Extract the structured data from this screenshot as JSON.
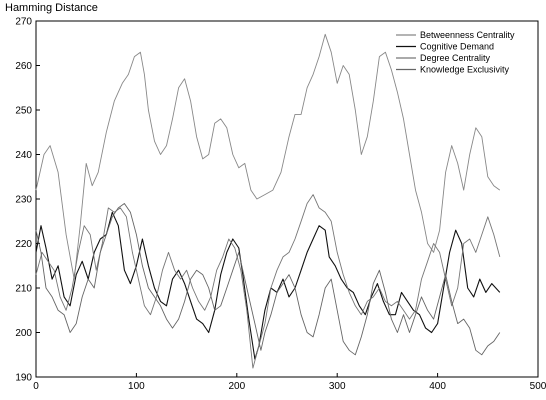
{
  "chart_data": {
    "type": "line",
    "title": "",
    "ylabel": "Hamming Distance",
    "xlabel": "",
    "xlim": [
      0,
      500
    ],
    "ylim": [
      190,
      270
    ],
    "xticks": [
      0,
      100,
      200,
      300,
      400,
      500
    ],
    "yticks": [
      190,
      200,
      210,
      220,
      230,
      240,
      250,
      260,
      270
    ],
    "grid": false,
    "legend_position": "top-right",
    "series": [
      {
        "name": "Betweenness Centrality",
        "color": "#888888",
        "points": [
          [
            0,
            232
          ],
          [
            8,
            240
          ],
          [
            14,
            242
          ],
          [
            22,
            236
          ],
          [
            30,
            222
          ],
          [
            38,
            212
          ],
          [
            44,
            224
          ],
          [
            50,
            238
          ],
          [
            56,
            233
          ],
          [
            62,
            236
          ],
          [
            70,
            245
          ],
          [
            78,
            252
          ],
          [
            86,
            256
          ],
          [
            92,
            258
          ],
          [
            98,
            262
          ],
          [
            104,
            263
          ],
          [
            108,
            258
          ],
          [
            112,
            250
          ],
          [
            118,
            243
          ],
          [
            124,
            240
          ],
          [
            130,
            242
          ],
          [
            136,
            248
          ],
          [
            142,
            255
          ],
          [
            148,
            257
          ],
          [
            154,
            252
          ],
          [
            160,
            244
          ],
          [
            166,
            239
          ],
          [
            172,
            240
          ],
          [
            178,
            247
          ],
          [
            184,
            248
          ],
          [
            190,
            246
          ],
          [
            196,
            240
          ],
          [
            202,
            237
          ],
          [
            208,
            238
          ],
          [
            214,
            232
          ],
          [
            220,
            230
          ],
          [
            228,
            231
          ],
          [
            236,
            232
          ],
          [
            244,
            236
          ],
          [
            252,
            244
          ],
          [
            258,
            249
          ],
          [
            264,
            249
          ],
          [
            270,
            255
          ],
          [
            276,
            258
          ],
          [
            282,
            262
          ],
          [
            288,
            267
          ],
          [
            294,
            263
          ],
          [
            300,
            256
          ],
          [
            306,
            260
          ],
          [
            312,
            258
          ],
          [
            318,
            250
          ],
          [
            324,
            240
          ],
          [
            330,
            244
          ],
          [
            336,
            252
          ],
          [
            342,
            262
          ],
          [
            348,
            263
          ],
          [
            354,
            259
          ],
          [
            360,
            254
          ],
          [
            366,
            248
          ],
          [
            372,
            240
          ],
          [
            378,
            232
          ],
          [
            384,
            227
          ],
          [
            390,
            220
          ],
          [
            396,
            218
          ],
          [
            402,
            223
          ],
          [
            408,
            236
          ],
          [
            414,
            242
          ],
          [
            420,
            238
          ],
          [
            426,
            232
          ],
          [
            432,
            240
          ],
          [
            438,
            246
          ],
          [
            444,
            244
          ],
          [
            450,
            235
          ],
          [
            456,
            233
          ],
          [
            462,
            232
          ]
        ]
      },
      {
        "name": "Cognitive Demand",
        "color": "#111111",
        "points": [
          [
            0,
            218
          ],
          [
            5,
            224
          ],
          [
            10,
            219
          ],
          [
            16,
            212
          ],
          [
            22,
            215
          ],
          [
            28,
            208
          ],
          [
            34,
            206
          ],
          [
            40,
            213
          ],
          [
            46,
            216
          ],
          [
            52,
            212
          ],
          [
            58,
            218
          ],
          [
            64,
            221
          ],
          [
            70,
            222
          ],
          [
            76,
            227
          ],
          [
            82,
            224
          ],
          [
            88,
            214
          ],
          [
            94,
            211
          ],
          [
            100,
            215
          ],
          [
            106,
            221
          ],
          [
            112,
            215
          ],
          [
            118,
            210
          ],
          [
            124,
            207
          ],
          [
            130,
            206
          ],
          [
            136,
            212
          ],
          [
            142,
            214
          ],
          [
            148,
            211
          ],
          [
            154,
            207
          ],
          [
            160,
            203
          ],
          [
            166,
            202
          ],
          [
            172,
            200
          ],
          [
            178,
            205
          ],
          [
            184,
            213
          ],
          [
            190,
            218
          ],
          [
            196,
            221
          ],
          [
            202,
            219
          ],
          [
            206,
            213
          ],
          [
            212,
            203
          ],
          [
            218,
            194
          ],
          [
            222,
            197
          ],
          [
            228,
            205
          ],
          [
            234,
            210
          ],
          [
            240,
            209
          ],
          [
            246,
            212
          ],
          [
            252,
            208
          ],
          [
            258,
            210
          ],
          [
            264,
            214
          ],
          [
            270,
            218
          ],
          [
            276,
            221
          ],
          [
            282,
            224
          ],
          [
            288,
            223
          ],
          [
            292,
            217
          ],
          [
            298,
            215
          ],
          [
            304,
            212
          ],
          [
            310,
            210
          ],
          [
            316,
            209
          ],
          [
            322,
            206
          ],
          [
            328,
            204
          ],
          [
            334,
            208
          ],
          [
            340,
            211
          ],
          [
            346,
            207
          ],
          [
            352,
            204
          ],
          [
            358,
            204
          ],
          [
            364,
            209
          ],
          [
            370,
            207
          ],
          [
            376,
            205
          ],
          [
            382,
            204
          ],
          [
            388,
            201
          ],
          [
            394,
            200
          ],
          [
            400,
            202
          ],
          [
            406,
            210
          ],
          [
            412,
            218
          ],
          [
            418,
            223
          ],
          [
            424,
            220
          ],
          [
            430,
            210
          ],
          [
            436,
            208
          ],
          [
            442,
            212
          ],
          [
            448,
            209
          ],
          [
            454,
            211
          ],
          [
            462,
            209
          ]
        ]
      },
      {
        "name": "Degree Centrality",
        "color": "#777777",
        "points": [
          [
            0,
            213
          ],
          [
            6,
            218
          ],
          [
            12,
            216
          ],
          [
            18,
            214
          ],
          [
            24,
            208
          ],
          [
            30,
            205
          ],
          [
            36,
            210
          ],
          [
            42,
            218
          ],
          [
            48,
            224
          ],
          [
            54,
            222
          ],
          [
            60,
            214
          ],
          [
            66,
            220
          ],
          [
            72,
            228
          ],
          [
            78,
            227
          ],
          [
            84,
            228
          ],
          [
            90,
            226
          ],
          [
            96,
            218
          ],
          [
            102,
            212
          ],
          [
            108,
            206
          ],
          [
            114,
            204
          ],
          [
            120,
            208
          ],
          [
            126,
            214
          ],
          [
            132,
            218
          ],
          [
            138,
            214
          ],
          [
            144,
            212
          ],
          [
            150,
            214
          ],
          [
            156,
            210
          ],
          [
            162,
            207
          ],
          [
            168,
            205
          ],
          [
            174,
            208
          ],
          [
            180,
            214
          ],
          [
            186,
            217
          ],
          [
            192,
            221
          ],
          [
            198,
            219
          ],
          [
            204,
            214
          ],
          [
            210,
            205
          ],
          [
            216,
            192
          ],
          [
            222,
            197
          ],
          [
            228,
            202
          ],
          [
            234,
            210
          ],
          [
            240,
            214
          ],
          [
            246,
            217
          ],
          [
            252,
            218
          ],
          [
            258,
            221
          ],
          [
            264,
            225
          ],
          [
            270,
            229
          ],
          [
            276,
            231
          ],
          [
            282,
            228
          ],
          [
            288,
            227
          ],
          [
            294,
            225
          ],
          [
            300,
            218
          ],
          [
            306,
            213
          ],
          [
            312,
            209
          ],
          [
            318,
            206
          ],
          [
            324,
            204
          ],
          [
            330,
            207
          ],
          [
            336,
            208
          ],
          [
            342,
            210
          ],
          [
            348,
            207
          ],
          [
            354,
            206
          ],
          [
            360,
            207
          ],
          [
            366,
            205
          ],
          [
            372,
            203
          ],
          [
            378,
            205
          ],
          [
            384,
            212
          ],
          [
            390,
            216
          ],
          [
            396,
            220
          ],
          [
            402,
            218
          ],
          [
            408,
            212
          ],
          [
            414,
            206
          ],
          [
            420,
            210
          ],
          [
            426,
            220
          ],
          [
            432,
            221
          ],
          [
            438,
            218
          ],
          [
            444,
            222
          ],
          [
            450,
            226
          ],
          [
            456,
            222
          ],
          [
            462,
            217
          ]
        ]
      },
      {
        "name": "Knowledge Exclusivity",
        "color": "#666666",
        "points": [
          [
            0,
            223
          ],
          [
            5,
            218
          ],
          [
            10,
            210
          ],
          [
            16,
            208
          ],
          [
            22,
            205
          ],
          [
            28,
            204
          ],
          [
            34,
            200
          ],
          [
            40,
            202
          ],
          [
            46,
            208
          ],
          [
            52,
            212
          ],
          [
            58,
            210
          ],
          [
            64,
            218
          ],
          [
            70,
            222
          ],
          [
            76,
            226
          ],
          [
            82,
            228
          ],
          [
            88,
            229
          ],
          [
            94,
            227
          ],
          [
            100,
            222
          ],
          [
            106,
            215
          ],
          [
            112,
            210
          ],
          [
            118,
            208
          ],
          [
            124,
            206
          ],
          [
            130,
            203
          ],
          [
            136,
            201
          ],
          [
            142,
            203
          ],
          [
            148,
            207
          ],
          [
            154,
            212
          ],
          [
            160,
            214
          ],
          [
            166,
            213
          ],
          [
            172,
            210
          ],
          [
            178,
            205
          ],
          [
            184,
            206
          ],
          [
            190,
            210
          ],
          [
            196,
            214
          ],
          [
            202,
            218
          ],
          [
            206,
            214
          ],
          [
            212,
            208
          ],
          [
            218,
            202
          ],
          [
            224,
            196
          ],
          [
            228,
            200
          ],
          [
            234,
            204
          ],
          [
            240,
            209
          ],
          [
            246,
            211
          ],
          [
            252,
            213
          ],
          [
            258,
            210
          ],
          [
            264,
            204
          ],
          [
            270,
            200
          ],
          [
            276,
            199
          ],
          [
            282,
            204
          ],
          [
            288,
            210
          ],
          [
            294,
            212
          ],
          [
            300,
            205
          ],
          [
            306,
            198
          ],
          [
            312,
            196
          ],
          [
            318,
            195
          ],
          [
            324,
            199
          ],
          [
            330,
            204
          ],
          [
            336,
            211
          ],
          [
            342,
            214
          ],
          [
            348,
            209
          ],
          [
            354,
            203
          ],
          [
            360,
            200
          ],
          [
            366,
            204
          ],
          [
            372,
            200
          ],
          [
            378,
            204
          ],
          [
            384,
            208
          ],
          [
            390,
            205
          ],
          [
            396,
            203
          ],
          [
            402,
            208
          ],
          [
            408,
            213
          ],
          [
            414,
            207
          ],
          [
            420,
            202
          ],
          [
            426,
            203
          ],
          [
            432,
            201
          ],
          [
            438,
            196
          ],
          [
            444,
            195
          ],
          [
            450,
            197
          ],
          [
            456,
            198
          ],
          [
            462,
            200
          ]
        ]
      }
    ]
  }
}
